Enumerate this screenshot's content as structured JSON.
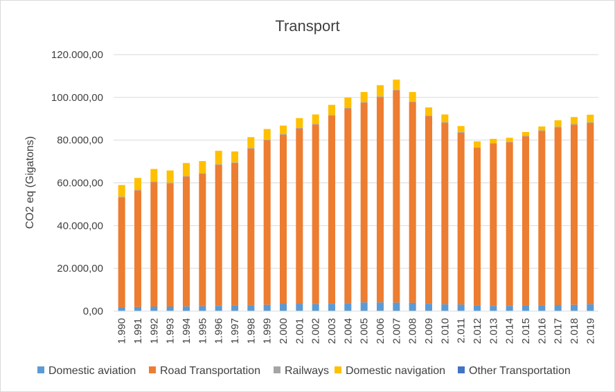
{
  "chart_data": {
    "type": "bar",
    "stacked": true,
    "title": "Transport",
    "ylabel": "CO2 eq (Gigatons)",
    "xlabel": "",
    "ylim": [
      0,
      120000
    ],
    "yticks": [
      0,
      20000,
      40000,
      60000,
      80000,
      100000,
      120000
    ],
    "ytick_labels": [
      "0,00",
      "20.000,00",
      "40.000,00",
      "60.000,00",
      "80.000,00",
      "100.000,00",
      "120.000,00"
    ],
    "grid": true,
    "legend_position": "bottom",
    "categories": [
      "1.990",
      "1.991",
      "1.992",
      "1.993",
      "1.994",
      "1.995",
      "1.996",
      "1.997",
      "1.998",
      "1.999",
      "2.000",
      "2.001",
      "2.002",
      "2.003",
      "2.004",
      "2.005",
      "2.006",
      "2.007",
      "2.008",
      "2.009",
      "2.010",
      "2.011",
      "2.012",
      "2.013",
      "2.014",
      "2.015",
      "2.016",
      "2.017",
      "2.018",
      "2.019"
    ],
    "series": [
      {
        "name": "Domestic aviation",
        "color": "#5b9bd5",
        "values": [
          1800,
          2000,
          2100,
          2100,
          2200,
          2300,
          2500,
          2700,
          2800,
          3000,
          3400,
          3400,
          3300,
          3500,
          3800,
          4100,
          4100,
          4000,
          3900,
          3500,
          3200,
          3100,
          2700,
          2500,
          2500,
          2600,
          2700,
          2900,
          3000,
          3200
        ]
      },
      {
        "name": "Road Transportation",
        "color": "#ed7d31",
        "values": [
          51500,
          54500,
          58300,
          57700,
          60800,
          61900,
          66000,
          66600,
          73200,
          77000,
          79100,
          82000,
          84000,
          88000,
          91000,
          93500,
          96100,
          99300,
          93900,
          87700,
          85000,
          80400,
          73700,
          75800,
          76500,
          79200,
          81600,
          83100,
          84200,
          84800
        ]
      },
      {
        "name": "Railways",
        "color": "#a5a5a5",
        "values": [
          300,
          300,
          300,
          300,
          300,
          300,
          300,
          300,
          300,
          300,
          300,
          300,
          300,
          300,
          300,
          300,
          300,
          300,
          300,
          300,
          300,
          300,
          300,
          300,
          300,
          300,
          300,
          300,
          300,
          300
        ]
      },
      {
        "name": "Domestic navigation",
        "color": "#ffc000",
        "values": [
          5400,
          5500,
          5800,
          5700,
          6000,
          5700,
          6200,
          5100,
          5100,
          4900,
          4000,
          4600,
          4400,
          4700,
          4800,
          4600,
          5200,
          4700,
          4400,
          3800,
          3500,
          2800,
          2700,
          2000,
          1800,
          1700,
          1800,
          3000,
          3300,
          3600
        ]
      },
      {
        "name": "Other Transportation",
        "color": "#4472c4",
        "values": [
          0,
          0,
          0,
          0,
          0,
          0,
          0,
          0,
          0,
          0,
          0,
          0,
          0,
          0,
          0,
          0,
          0,
          0,
          0,
          0,
          0,
          0,
          0,
          0,
          0,
          0,
          0,
          0,
          0,
          0
        ]
      }
    ]
  }
}
